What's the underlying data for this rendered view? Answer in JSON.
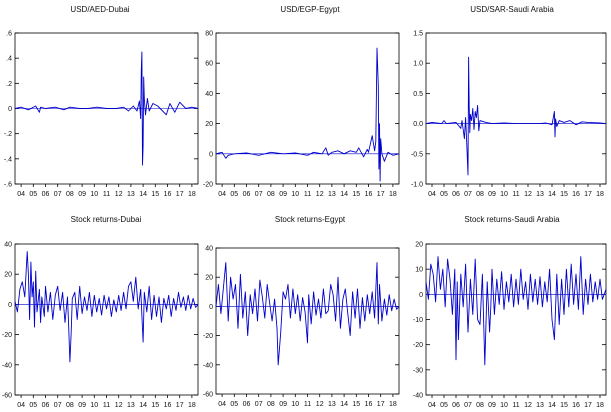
{
  "colors": {
    "line": "#0000cc",
    "axis": "#000000",
    "zero": "#0000cc"
  },
  "chart_data": [
    {
      "type": "line",
      "title": "USD/AED-Dubai",
      "ylim": [
        -0.6,
        0.6
      ],
      "yticks": [
        -0.6,
        -0.4,
        -0.2,
        0.0,
        0.2,
        0.4,
        0.6
      ],
      "ytick_labels": [
        "-.6",
        "-.4",
        "-.2",
        "0",
        ".2",
        ".4",
        ".6"
      ],
      "xlim": [
        2003.5,
        2018.5
      ],
      "xtick_labels": [
        "04",
        "05",
        "06",
        "07",
        "08",
        "09",
        "10",
        "11",
        "12",
        "13",
        "14",
        "15",
        "16",
        "17",
        "18"
      ],
      "series": [
        {
          "x": [
            2003.5,
            2004.0,
            2004.6,
            2005.2,
            2005.5,
            2005.6,
            2006.0,
            2006.8,
            2007.5,
            2008.0,
            2008.8,
            2009.5,
            2010.2,
            2011.0,
            2011.8,
            2012.4,
            2012.8,
            2013.2,
            2013.5,
            2013.7,
            2013.8,
            2013.85,
            2013.9,
            2013.95,
            2014.0,
            2014.05,
            2014.1,
            2014.2,
            2014.35,
            2014.5,
            2014.8,
            2015.2,
            2015.6,
            2015.9,
            2016.2,
            2016.6,
            2017.0,
            2017.5,
            2018.0,
            2018.5
          ],
          "y": [
            0.0,
            0.01,
            -0.01,
            0.02,
            -0.03,
            0.01,
            0.0,
            0.01,
            -0.01,
            0.01,
            0.0,
            0.0,
            0.01,
            0.0,
            0.0,
            0.01,
            -0.02,
            0.02,
            -0.02,
            0.06,
            -0.08,
            0.3,
            0.45,
            -0.45,
            -0.3,
            0.25,
            0.08,
            -0.05,
            0.08,
            -0.02,
            0.04,
            0.02,
            -0.02,
            -0.05,
            0.04,
            -0.03,
            0.05,
            0.0,
            0.01,
            0.0
          ]
        }
      ]
    },
    {
      "type": "line",
      "title": "USD/EGP-Egypt",
      "ylim": [
        -20,
        80
      ],
      "yticks": [
        -20,
        0,
        20,
        40,
        60,
        80
      ],
      "ytick_labels": [
        "-20",
        "0",
        "20",
        "40",
        "60",
        "80"
      ],
      "xlim": [
        2003.5,
        2018.5
      ],
      "xtick_labels": [
        "04",
        "05",
        "06",
        "07",
        "08",
        "09",
        "10",
        "11",
        "12",
        "13",
        "14",
        "15",
        "16",
        "17",
        "18"
      ],
      "series": [
        {
          "x": [
            2003.5,
            2004.0,
            2004.3,
            2004.5,
            2005.0,
            2006.0,
            2007.0,
            2008.0,
            2009.0,
            2010.0,
            2011.0,
            2011.5,
            2012.2,
            2012.5,
            2012.7,
            2013.0,
            2013.5,
            2014.0,
            2014.5,
            2015.0,
            2015.2,
            2015.6,
            2015.9,
            2016.0,
            2016.3,
            2016.5,
            2016.6,
            2016.7,
            2016.8,
            2016.85,
            2016.9,
            2016.95,
            2017.0,
            2017.1,
            2017.3,
            2017.6,
            2018.0,
            2018.5
          ],
          "y": [
            0,
            1,
            -3,
            -1,
            0,
            0.5,
            -1,
            1,
            0,
            0.5,
            -1,
            1,
            0,
            4,
            -1,
            1,
            2,
            0,
            2,
            1,
            4,
            -2,
            3,
            1,
            12,
            2,
            8,
            70,
            45,
            -10,
            20,
            -18,
            10,
            0,
            -5,
            1,
            -1,
            0
          ]
        }
      ]
    },
    {
      "type": "line",
      "title": "USD/SAR-Saudi Arabia",
      "ylim": [
        -1.0,
        1.5
      ],
      "yticks": [
        -1.0,
        -0.5,
        0.0,
        0.5,
        1.0,
        1.5
      ],
      "ytick_labels": [
        "-1.0",
        "-0.5",
        "0.0",
        "0.5",
        "1.0",
        "1.5"
      ],
      "xlim": [
        2003.5,
        2018.5
      ],
      "xtick_labels": [
        "04",
        "05",
        "06",
        "07",
        "08",
        "09",
        "10",
        "11",
        "12",
        "13",
        "14",
        "15",
        "16",
        "17",
        "18"
      ],
      "series": [
        {
          "x": [
            2003.5,
            2004.0,
            2004.8,
            2005.0,
            2005.2,
            2006.0,
            2006.4,
            2006.5,
            2006.7,
            2006.8,
            2006.9,
            2007.0,
            2007.05,
            2007.1,
            2007.15,
            2007.2,
            2007.3,
            2007.4,
            2007.5,
            2007.6,
            2007.7,
            2007.8,
            2007.9,
            2008.0,
            2008.5,
            2009.0,
            2010.0,
            2011.0,
            2012.0,
            2013.0,
            2013.5,
            2014.0,
            2014.2,
            2014.25,
            2014.3,
            2014.4,
            2014.6,
            2015.0,
            2015.5,
            2016.0,
            2016.5,
            2017.0,
            2018.0,
            2018.5
          ],
          "y": [
            0,
            0.02,
            0,
            0.05,
            0,
            0.02,
            -0.08,
            0.05,
            -0.25,
            0.1,
            -0.35,
            -0.85,
            1.1,
            0.3,
            -0.15,
            0.15,
            0.05,
            0.25,
            -0.1,
            0.2,
            0.1,
            0.3,
            -0.12,
            0.05,
            0.02,
            0,
            0.01,
            0,
            0,
            0,
            0.01,
            -0.02,
            0.2,
            -0.22,
            0.08,
            -0.05,
            0.05,
            0.02,
            0.05,
            -0.02,
            0.03,
            0.02,
            0.01,
            0
          ]
        }
      ]
    },
    {
      "type": "line",
      "title": "Stock returns-Dubai",
      "ylim": [
        -60,
        40
      ],
      "yticks": [
        -60,
        -40,
        -20,
        0,
        20,
        40
      ],
      "ytick_labels": [
        "-60",
        "-40",
        "-20",
        "0",
        "20",
        "40"
      ],
      "xlim": [
        2003.5,
        2018.5
      ],
      "xtick_labels": [
        "04",
        "05",
        "06",
        "07",
        "08",
        "09",
        "10",
        "11",
        "12",
        "13",
        "14",
        "15",
        "16",
        "17",
        "18"
      ],
      "series": [
        {
          "x": [
            2003.5,
            2003.7,
            2003.9,
            2004.1,
            2004.3,
            2004.5,
            2004.6,
            2004.7,
            2004.8,
            2004.9,
            2005.0,
            2005.1,
            2005.2,
            2005.3,
            2005.5,
            2005.6,
            2005.7,
            2005.9,
            2006.0,
            2006.2,
            2006.4,
            2006.6,
            2006.8,
            2007.0,
            2007.2,
            2007.4,
            2007.6,
            2007.8,
            2007.9,
            2008.0,
            2008.1,
            2008.2,
            2008.4,
            2008.6,
            2008.8,
            2009.0,
            2009.2,
            2009.4,
            2009.6,
            2009.8,
            2010.0,
            2010.2,
            2010.4,
            2010.6,
            2010.8,
            2011.0,
            2011.2,
            2011.4,
            2011.6,
            2011.8,
            2012.0,
            2012.2,
            2012.4,
            2012.6,
            2012.8,
            2013.0,
            2013.2,
            2013.4,
            2013.6,
            2013.8,
            2014.0,
            2014.1,
            2014.3,
            2014.5,
            2014.7,
            2014.9,
            2015.1,
            2015.3,
            2015.5,
            2015.7,
            2015.9,
            2016.1,
            2016.3,
            2016.5,
            2016.7,
            2016.9,
            2017.1,
            2017.3,
            2017.5,
            2017.7,
            2017.9,
            2018.1,
            2018.3,
            2018.5
          ],
          "y": [
            2,
            -5,
            10,
            15,
            5,
            35,
            20,
            -10,
            28,
            5,
            15,
            -15,
            22,
            -5,
            10,
            -12,
            5,
            -8,
            12,
            -5,
            8,
            -10,
            6,
            12,
            -4,
            8,
            -12,
            5,
            -15,
            -38,
            -20,
            4,
            8,
            -10,
            12,
            -6,
            5,
            -4,
            8,
            -8,
            6,
            -5,
            4,
            -7,
            6,
            -3,
            5,
            -8,
            3,
            -5,
            6,
            -4,
            8,
            -3,
            12,
            15,
            2,
            18,
            -3,
            10,
            -25,
            8,
            -5,
            12,
            -10,
            6,
            -8,
            5,
            -12,
            4,
            -3,
            6,
            -8,
            4,
            -4,
            8,
            -2,
            5,
            -4,
            6,
            -3,
            4,
            -2,
            0
          ]
        }
      ]
    },
    {
      "type": "line",
      "title": "Stock returns-Egypt",
      "ylim": [
        -60,
        40
      ],
      "yticks": [
        -60,
        -40,
        -20,
        0,
        20,
        40
      ],
      "ytick_labels": [
        "-60",
        "-40",
        "-20",
        "0",
        "20",
        "40"
      ],
      "xlim": [
        2003.5,
        2018.5
      ],
      "xtick_labels": [
        "04",
        "05",
        "06",
        "07",
        "08",
        "09",
        "10",
        "11",
        "12",
        "13",
        "14",
        "15",
        "16",
        "17",
        "18"
      ],
      "series": [
        {
          "x": [
            2003.5,
            2003.7,
            2003.9,
            2004.1,
            2004.3,
            2004.5,
            2004.7,
            2004.9,
            2005.1,
            2005.3,
            2005.5,
            2005.7,
            2005.9,
            2006.1,
            2006.3,
            2006.5,
            2006.7,
            2006.9,
            2007.1,
            2007.3,
            2007.5,
            2007.7,
            2007.9,
            2008.1,
            2008.3,
            2008.5,
            2008.6,
            2008.8,
            2009.0,
            2009.2,
            2009.4,
            2009.6,
            2009.8,
            2010.0,
            2010.2,
            2010.4,
            2010.6,
            2010.8,
            2011.0,
            2011.1,
            2011.3,
            2011.5,
            2011.7,
            2011.9,
            2012.1,
            2012.3,
            2012.5,
            2012.7,
            2012.9,
            2013.1,
            2013.3,
            2013.5,
            2013.7,
            2013.9,
            2014.1,
            2014.3,
            2014.5,
            2014.7,
            2014.9,
            2015.1,
            2015.3,
            2015.5,
            2015.7,
            2015.9,
            2016.1,
            2016.3,
            2016.5,
            2016.7,
            2016.8,
            2016.9,
            2017.1,
            2017.3,
            2017.5,
            2017.7,
            2017.9,
            2018.1,
            2018.3,
            2018.5
          ],
          "y": [
            0,
            15,
            -5,
            12,
            30,
            -10,
            20,
            5,
            15,
            -15,
            22,
            -8,
            10,
            -20,
            8,
            -5,
            12,
            -10,
            18,
            6,
            -8,
            15,
            2,
            -10,
            5,
            -15,
            -40,
            -18,
            10,
            5,
            15,
            -8,
            12,
            -5,
            8,
            -10,
            6,
            -4,
            -25,
            8,
            -12,
            10,
            -6,
            5,
            -8,
            12,
            -5,
            -3,
            15,
            8,
            -10,
            20,
            -15,
            5,
            12,
            -5,
            -20,
            10,
            -8,
            12,
            -15,
            6,
            -10,
            8,
            -5,
            10,
            -8,
            30,
            -12,
            15,
            -10,
            5,
            -6,
            8,
            -3,
            5,
            -2,
            0
          ]
        }
      ]
    },
    {
      "type": "line",
      "title": "Stock returns-Saudi Arabia",
      "ylim": [
        -40,
        20
      ],
      "yticks": [
        -40,
        -30,
        -20,
        -10,
        0,
        10,
        20
      ],
      "ytick_labels": [
        "-40",
        "-30",
        "-20",
        "-10",
        "0",
        "10",
        "20"
      ],
      "xlim": [
        2003.5,
        2018.5
      ],
      "xtick_labels": [
        "04",
        "05",
        "06",
        "07",
        "08",
        "09",
        "10",
        "11",
        "12",
        "13",
        "14",
        "15",
        "16",
        "17",
        "18"
      ],
      "series": [
        {
          "x": [
            2003.5,
            2003.7,
            2003.9,
            2004.1,
            2004.3,
            2004.5,
            2004.7,
            2004.9,
            2005.1,
            2005.3,
            2005.5,
            2005.7,
            2005.9,
            2006.0,
            2006.1,
            2006.2,
            2006.4,
            2006.6,
            2006.8,
            2007.0,
            2007.2,
            2007.4,
            2007.6,
            2007.8,
            2008.0,
            2008.2,
            2008.4,
            2008.6,
            2008.8,
            2008.9,
            2009.0,
            2009.2,
            2009.4,
            2009.6,
            2009.8,
            2010.0,
            2010.2,
            2010.4,
            2010.6,
            2010.8,
            2011.0,
            2011.2,
            2011.4,
            2011.6,
            2011.8,
            2012.0,
            2012.2,
            2012.4,
            2012.6,
            2012.8,
            2013.0,
            2013.2,
            2013.4,
            2013.6,
            2013.8,
            2014.0,
            2014.2,
            2014.4,
            2014.6,
            2014.8,
            2015.0,
            2015.2,
            2015.4,
            2015.6,
            2015.8,
            2016.0,
            2016.2,
            2016.4,
            2016.6,
            2016.8,
            2017.0,
            2017.2,
            2017.4,
            2017.6,
            2017.8,
            2018.0,
            2018.2,
            2018.5
          ],
          "y": [
            5,
            -2,
            12,
            8,
            -3,
            15,
            2,
            10,
            -5,
            14,
            6,
            -8,
            10,
            -26,
            5,
            -18,
            8,
            -5,
            12,
            -15,
            6,
            -8,
            14,
            -10,
            -12,
            8,
            -28,
            5,
            -15,
            -5,
            10,
            -8,
            6,
            -4,
            9,
            -6,
            5,
            -3,
            8,
            -5,
            6,
            -4,
            10,
            -2,
            5,
            -6,
            8,
            -3,
            6,
            -4,
            7,
            -5,
            5,
            -3,
            10,
            -10,
            -18,
            8,
            -12,
            6,
            -8,
            10,
            -5,
            12,
            -4,
            8,
            -6,
            15,
            -8,
            6,
            -4,
            8,
            -3,
            5,
            -2,
            6,
            -2,
            2
          ]
        }
      ]
    }
  ]
}
